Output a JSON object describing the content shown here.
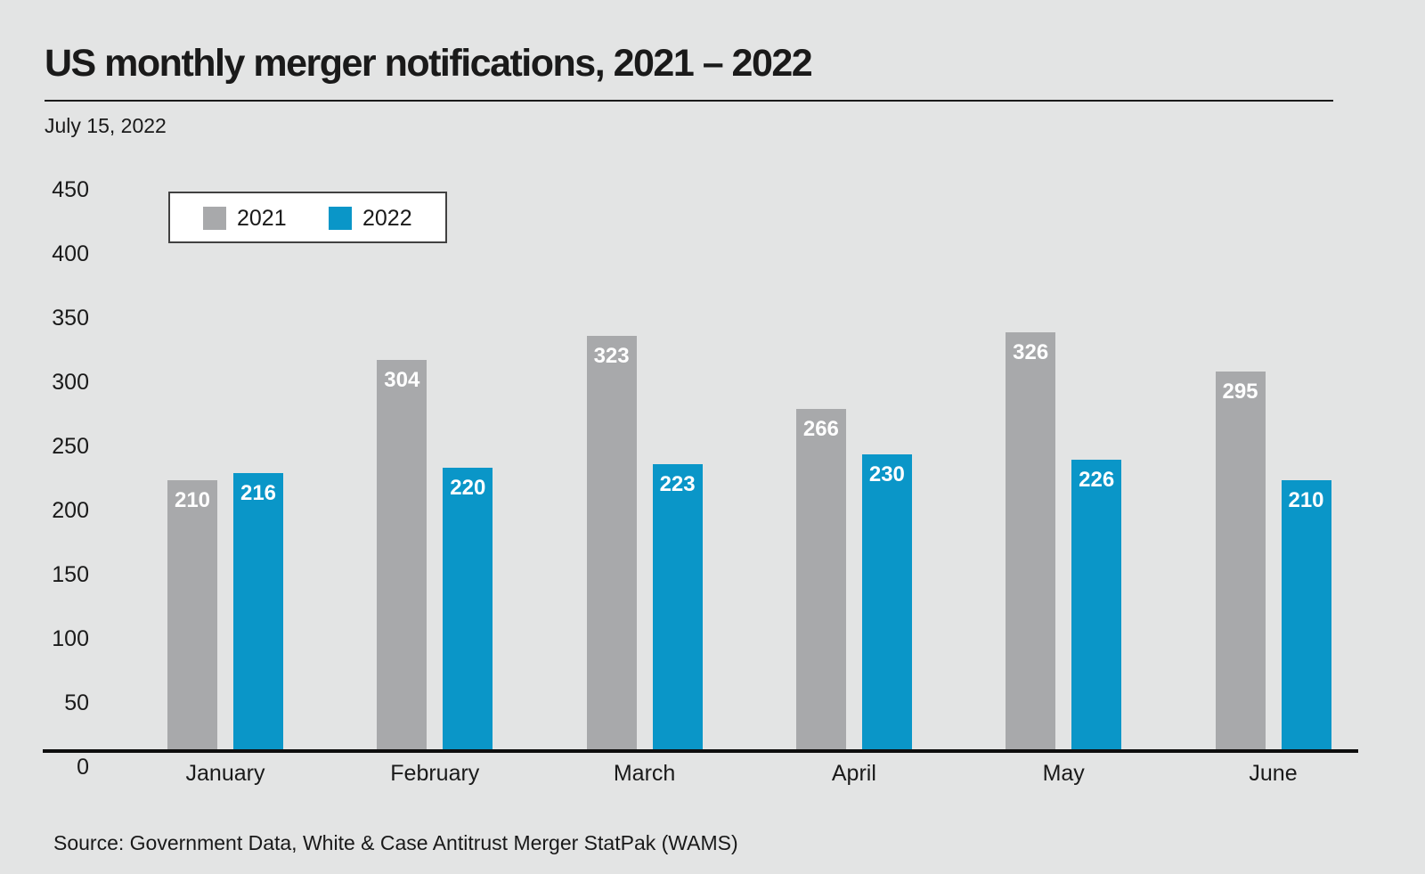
{
  "header": {
    "title": "US monthly merger notifications, 2021 – 2022",
    "date": "July 15, 2022"
  },
  "footer": {
    "source": "Source: Government Data, White & Case Antitrust Merger StatPak (WAMS)"
  },
  "colors": {
    "background": "#e3e4e4",
    "bar_2021": "#a8a9ab",
    "bar_2022": "#0a96c8",
    "text": "#1a1a1a",
    "value_label": "#ffffff",
    "axis": "#0e0e0e",
    "legend_border": "#414141",
    "legend_background": "#ffffff"
  },
  "chart_data": {
    "type": "bar",
    "title": "US monthly merger notifications, 2021 – 2022",
    "subtitle": "July 15, 2022",
    "categories": [
      "January",
      "February",
      "March",
      "April",
      "May",
      "June"
    ],
    "series": [
      {
        "name": "2021",
        "color": "#a8a9ab",
        "values": [
          210,
          304,
          323,
          266,
          326,
          295
        ]
      },
      {
        "name": "2022",
        "color": "#0a96c8",
        "values": [
          216,
          220,
          223,
          230,
          226,
          210
        ]
      }
    ],
    "xlabel": "",
    "ylabel": "",
    "ylim": [
      0,
      450
    ],
    "y_ticks": [
      450,
      400,
      350,
      300,
      250,
      200,
      150,
      100,
      50,
      0
    ],
    "grid": false,
    "legend_position": "top-left inside plot",
    "value_labels": "white bold numbers inside top of each bar",
    "source": "Source: Government Data, White & Case Antitrust Merger StatPak (WAMS)"
  }
}
